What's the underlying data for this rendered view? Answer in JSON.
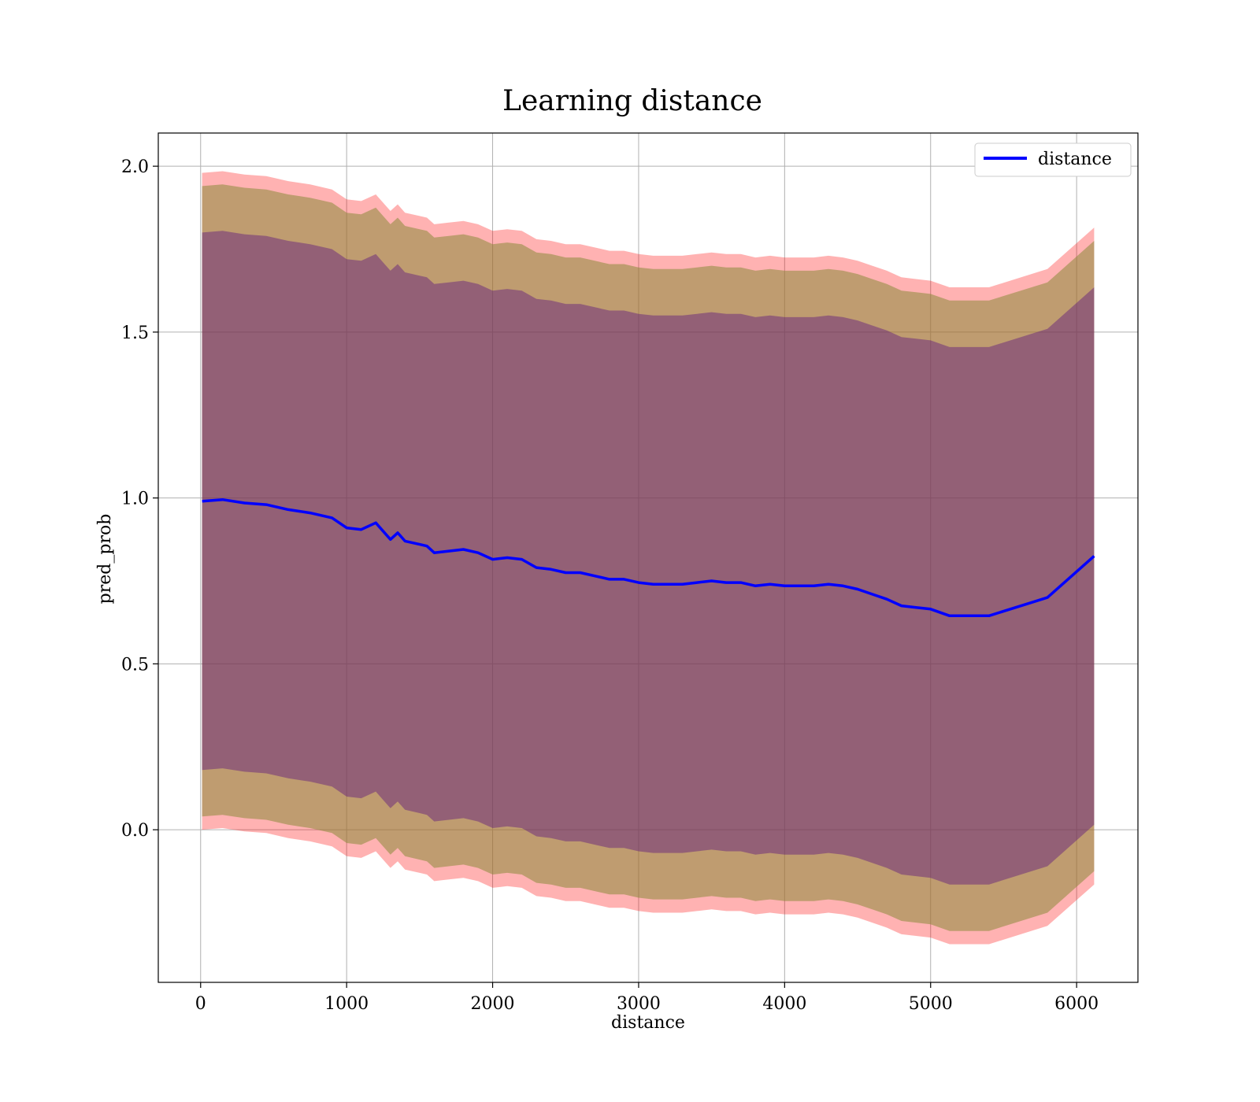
{
  "chart_data": {
    "type": "line",
    "title": "Learning distance",
    "xlabel": "distance",
    "ylabel": "pred_prob",
    "xlim": [
      -290,
      6420
    ],
    "ylim": [
      -0.46,
      2.1
    ],
    "xticks": [
      0,
      1000,
      2000,
      3000,
      4000,
      5000,
      6000
    ],
    "yticks": [
      0.0,
      0.5,
      1.0,
      1.5,
      2.0
    ],
    "xtick_labels": [
      "0",
      "1000",
      "2000",
      "3000",
      "4000",
      "5000",
      "6000"
    ],
    "ytick_labels": [
      "0.0",
      "0.5",
      "1.0",
      "1.5",
      "2.0"
    ],
    "grid": true,
    "legend": {
      "position": "top-right",
      "entries": [
        "distance"
      ]
    },
    "colors": {
      "line": "#0000ff",
      "band_outer": "#ff0000",
      "band_middle": "#8b8b3a",
      "band_inner": "#4b0082",
      "grid": "#b0b0b0"
    },
    "x": [
      10,
      150,
      300,
      450,
      600,
      750,
      900,
      1000,
      1100,
      1200,
      1250,
      1300,
      1350,
      1400,
      1500,
      1550,
      1600,
      1700,
      1800,
      1900,
      2000,
      2100,
      2200,
      2300,
      2400,
      2500,
      2600,
      2700,
      2800,
      2900,
      3000,
      3100,
      3200,
      3300,
      3400,
      3500,
      3600,
      3700,
      3800,
      3900,
      4000,
      4100,
      4200,
      4300,
      4400,
      4500,
      4600,
      4700,
      4800,
      4900,
      5000,
      5130,
      5400,
      5800,
      6120
    ],
    "series": [
      {
        "name": "distance",
        "values": [
          0.99,
          0.995,
          0.985,
          0.98,
          0.965,
          0.955,
          0.94,
          0.91,
          0.905,
          0.925,
          0.9,
          0.875,
          0.895,
          0.87,
          0.86,
          0.855,
          0.835,
          0.84,
          0.845,
          0.835,
          0.815,
          0.82,
          0.815,
          0.79,
          0.785,
          0.775,
          0.775,
          0.765,
          0.755,
          0.755,
          0.745,
          0.74,
          0.74,
          0.74,
          0.745,
          0.75,
          0.745,
          0.745,
          0.735,
          0.74,
          0.735,
          0.735,
          0.735,
          0.74,
          0.735,
          0.725,
          0.71,
          0.695,
          0.675,
          0.67,
          0.665,
          0.645,
          0.645,
          0.7,
          0.825
        ]
      }
    ],
    "band_offsets": {
      "outer": 0.99,
      "middle": 0.95,
      "inner": 0.81
    }
  }
}
